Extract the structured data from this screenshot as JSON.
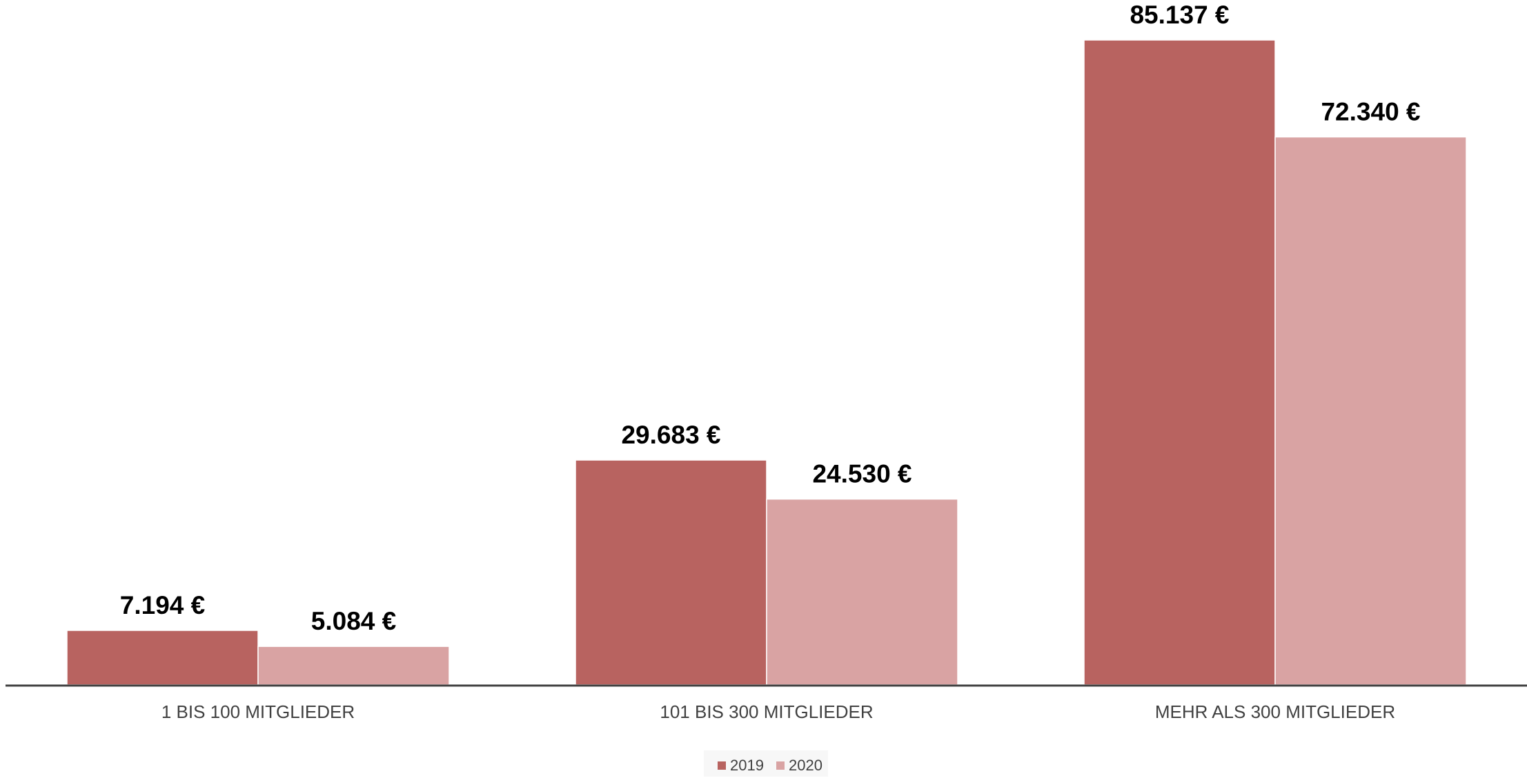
{
  "chart_data": {
    "type": "bar",
    "title": "",
    "xlabel": "",
    "ylabel": "",
    "categories": [
      "1 BIS 100 MITGLIEDER",
      "101 BIS 300 MITGLIEDER",
      "MEHR ALS 300 MITGLIEDER"
    ],
    "series": [
      {
        "name": "2019",
        "values": [
          7194,
          29683,
          85137
        ],
        "labels": [
          "7.194 €",
          "29.683 €",
          "85.137 €"
        ],
        "color": "#b86360"
      },
      {
        "name": "2020",
        "values": [
          5084,
          24530,
          72340
        ],
        "labels": [
          "5.084 €",
          "24.530 €",
          "72.340 €"
        ],
        "color": "#d9a3a3"
      }
    ],
    "ylim": [
      0,
      85137
    ],
    "grid": false,
    "legend_position": "bottom",
    "axis_color": "#404040"
  }
}
